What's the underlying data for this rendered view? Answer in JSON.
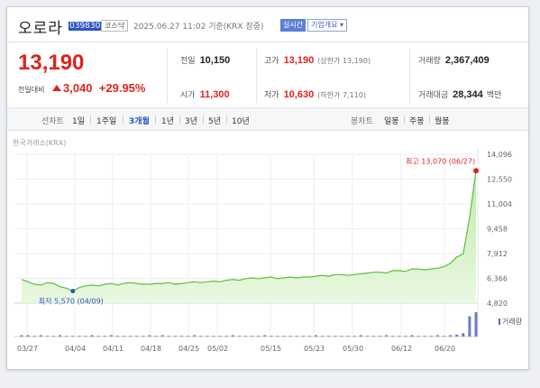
{
  "header": {
    "stock_name": "오로라",
    "stock_code": "039830",
    "market_tag": "코스닥",
    "timestamp": "2025.06.27 11:02 기준(KRX 장중)",
    "realtime_btn": "실시간",
    "company_btn": "기업개요 ▾"
  },
  "price": {
    "current": "13,190",
    "change_label": "전일대비",
    "change_amount": "3,040",
    "change_pct": "+29.95%"
  },
  "summary": {
    "prev_label": "전일",
    "prev_value": "10,150",
    "high_label": "고가",
    "high_value": "13,190",
    "high_sub": "(상한가 13,190)",
    "volume_label": "거래량",
    "volume_value": "2,367,409",
    "open_label": "시가",
    "open_value": "11,300",
    "low_label": "저가",
    "low_value": "10,630",
    "low_sub": "(하한가 7,110)",
    "amount_label": "거래대금",
    "amount_value": "28,344",
    "amount_unit": "백만"
  },
  "tabs": {
    "line_label": "선차트",
    "periods": [
      "1일",
      "1주일",
      "3개월",
      "1년",
      "3년",
      "5년",
      "10년"
    ],
    "active_period": "3개월",
    "candle_label": "봉차트",
    "candles": [
      "일봉",
      "주봉",
      "월봉"
    ]
  },
  "exchange_label": "한국거래소(KRX)",
  "volume_label": "거래량",
  "chart_data": {
    "type": "area",
    "yticks": [
      14096,
      12550,
      11004,
      9458,
      7912,
      6366,
      4820
    ],
    "ytick_labels": [
      "14,096",
      "12,550",
      "11,004",
      "9,458",
      "7,912",
      "6,366",
      "4,820"
    ],
    "ylim": [
      4820,
      14096
    ],
    "xtick_labels": [
      "03/27",
      "04/04",
      "04/11",
      "04/18",
      "04/25",
      "05/02",
      "05/15",
      "05/23",
      "05/30",
      "06/12",
      "06/20"
    ],
    "values": [
      6300,
      6150,
      6000,
      5950,
      6100,
      6050,
      5850,
      5750,
      5570,
      5800,
      5900,
      5950,
      5900,
      6000,
      6050,
      5950,
      6050,
      6100,
      6050,
      6000,
      6000,
      6050,
      6050,
      6100,
      6000,
      6050,
      6100,
      6150,
      6100,
      6150,
      6200,
      6150,
      6250,
      6300,
      6250,
      6350,
      6400,
      6350,
      6400,
      6450,
      6350,
      6400,
      6450,
      6400,
      6450,
      6450,
      6500,
      6550,
      6500,
      6600,
      6600,
      6550,
      6600,
      6650,
      6700,
      6750,
      6750,
      6700,
      6850,
      6850,
      6800,
      6950,
      6950,
      6900,
      6950,
      7000,
      7100,
      7300,
      7700,
      7900,
      10150,
      13070
    ],
    "high_annotation": "최고 13,070 (06/27)",
    "low_annotation": "최저 5,570 (04/09)",
    "volume": [
      2,
      2,
      1,
      2,
      1,
      1,
      2,
      1,
      1,
      1,
      1,
      2,
      1,
      1,
      2,
      1,
      1,
      1,
      1,
      1,
      2,
      1,
      2,
      1,
      1,
      1,
      1,
      2,
      1,
      1,
      1,
      1,
      1,
      2,
      1,
      1,
      1,
      1,
      2,
      1,
      1,
      1,
      1,
      1,
      1,
      1,
      2,
      1,
      1,
      1,
      1,
      1,
      1,
      2,
      1,
      1,
      1,
      2,
      1,
      1,
      1,
      2,
      1,
      1,
      1,
      2,
      1,
      2,
      3,
      5,
      30,
      36
    ]
  }
}
